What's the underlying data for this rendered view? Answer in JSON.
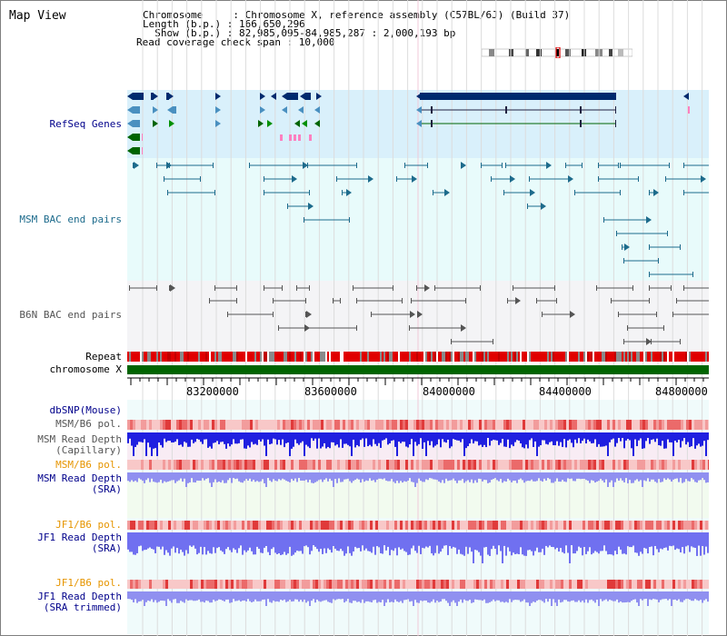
{
  "title": "Map View",
  "header": {
    "line1": "Chromosome     : Chromosome X, reference assembly (C57BL/6J) (Build 37)",
    "line2": "Length (b.p.) : 166,650,296",
    "line3": "  Show (b.p.) : 82,985,095-84,985,287 : 2,000,193 bp",
    "line4": "Read coverage check span : 10,000"
  },
  "tracks": {
    "refseq": "RefSeq Genes",
    "msm_bac": "MSM BAC end pairs",
    "b6n_bac": "B6N BAC end pairs",
    "repeat": "Repeat",
    "chromosome": "chromosome X",
    "dbsnp": "dbSNP(Mouse)",
    "msm_pol": "MSM/B6 pol.",
    "msm_depth_cap_1": "MSM Read Depth",
    "msm_depth_cap_2": "(Capillary)",
    "msm_pol2": "MSM/B6 pol.",
    "msm_depth_sra_1": "MSM Read Depth",
    "msm_depth_sra_2": "(SRA)",
    "jf1_pol": "JF1/B6 pol.",
    "jf1_depth_1": "JF1 Read Depth",
    "jf1_depth_2": "(SRA)",
    "jf1_pol2": "JF1/B6 pol.",
    "jf1_trim_1": "JF1 Read Depth",
    "jf1_trim_2": "(SRA trimmed)"
  },
  "axis": {
    "ticks": [
      "83200000",
      "83600000",
      "84000000",
      "84400000",
      "84800000"
    ]
  },
  "colors": {
    "refseq_bg": "#d9f0fb",
    "bac_bg": "#e8fbfb",
    "b6n_bg": "#f4f4f6",
    "chromosome": "#006400",
    "navy_label": "#00008b",
    "orange_label": "#e69500"
  }
}
